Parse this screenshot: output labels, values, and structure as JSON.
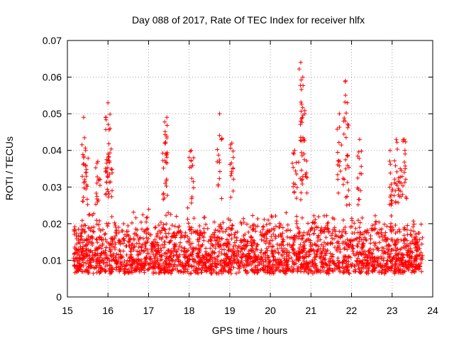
{
  "chart_data": {
    "type": "scatter",
    "title": "Day 088 of 2017, Rate Of TEC Index for receiver hlfx",
    "xlabel": "GPS time / hours",
    "ylabel": "ROTI / TECUs",
    "xlim": [
      15,
      24
    ],
    "ylim": [
      0,
      0.07
    ],
    "x_ticks": [
      "15",
      "16",
      "17",
      "18",
      "19",
      "20",
      "21",
      "22",
      "23",
      "24"
    ],
    "y_ticks": [
      "0",
      "0.01",
      "0.02",
      "0.03",
      "0.04",
      "0.05",
      "0.06",
      "0.07"
    ],
    "grid": true,
    "marker": "+",
    "color": "#ff0000",
    "series": [
      {
        "name": "ROTI",
        "description": "dense cloud of points between 0.003 and 0.025 TECU/s from 15.1 h to 23.8 h, with spikes listed below",
        "base_range": [
          0.003,
          0.025
        ],
        "time_range": [
          15.15,
          23.75
        ],
        "spikes": [
          {
            "x": 15.4,
            "y": 0.049
          },
          {
            "x": 15.45,
            "y": 0.04
          },
          {
            "x": 15.75,
            "y": 0.037
          },
          {
            "x": 16.0,
            "y": 0.053
          },
          {
            "x": 16.05,
            "y": 0.046
          },
          {
            "x": 16.0,
            "y": 0.039
          },
          {
            "x": 17.45,
            "y": 0.049
          },
          {
            "x": 17.4,
            "y": 0.042
          },
          {
            "x": 18.05,
            "y": 0.04
          },
          {
            "x": 18.75,
            "y": 0.05
          },
          {
            "x": 19.05,
            "y": 0.042
          },
          {
            "x": 20.6,
            "y": 0.04
          },
          {
            "x": 20.75,
            "y": 0.064
          },
          {
            "x": 20.8,
            "y": 0.06
          },
          {
            "x": 20.85,
            "y": 0.05
          },
          {
            "x": 21.7,
            "y": 0.05
          },
          {
            "x": 21.85,
            "y": 0.059
          },
          {
            "x": 21.9,
            "y": 0.053
          },
          {
            "x": 22.2,
            "y": 0.043
          },
          {
            "x": 22.95,
            "y": 0.04
          },
          {
            "x": 23.1,
            "y": 0.043
          },
          {
            "x": 23.3,
            "y": 0.043
          },
          {
            "x": 23.2,
            "y": 0.035
          }
        ]
      }
    ]
  }
}
